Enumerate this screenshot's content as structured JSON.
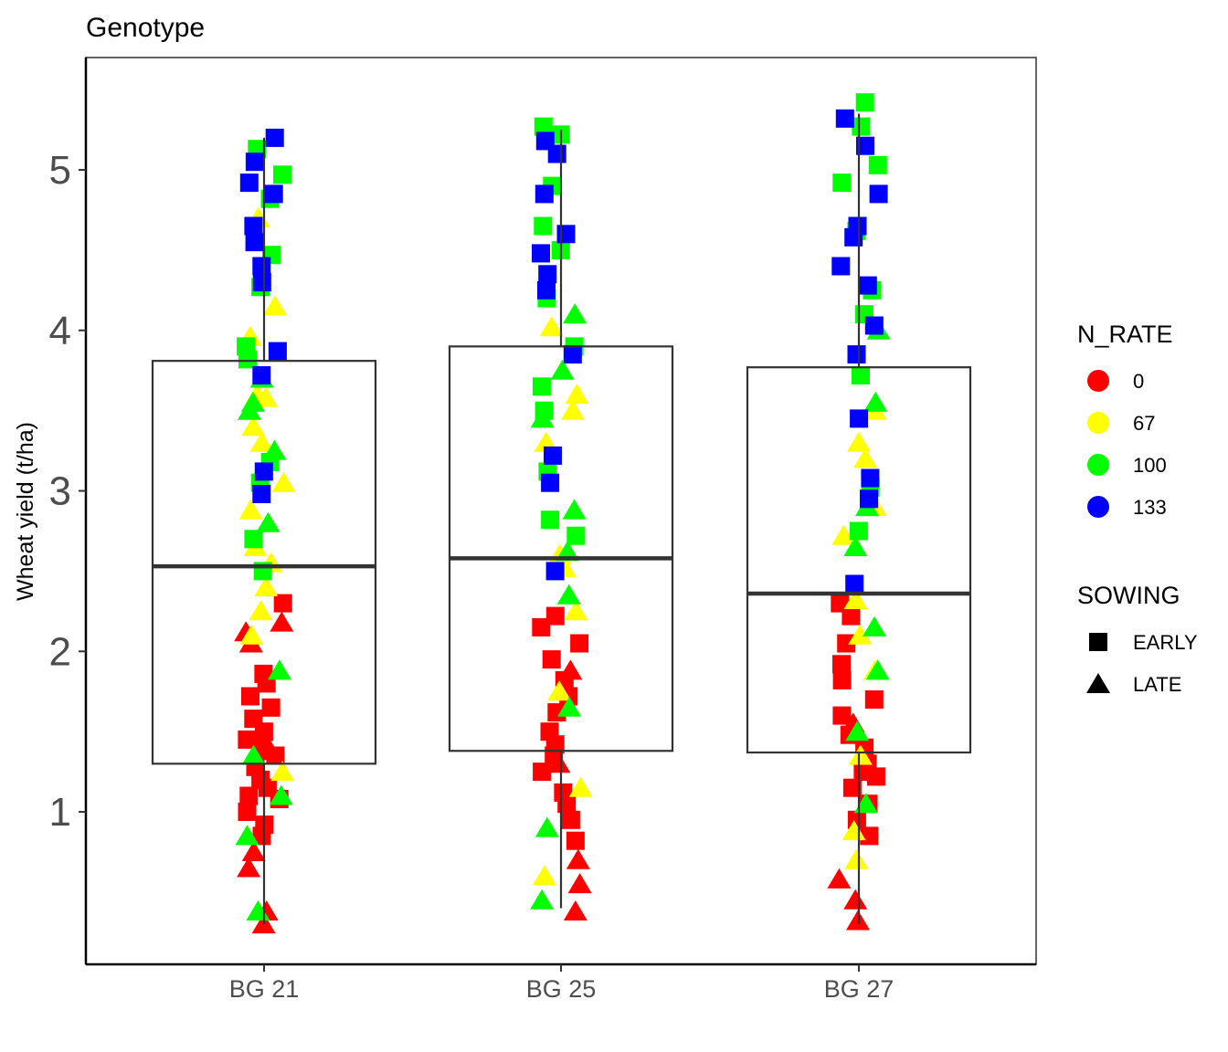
{
  "chart_data": {
    "type": "box-jitter",
    "title": "Genotype",
    "xlabel": "",
    "ylabel": "Wheat yield (t/ha)",
    "ylim": [
      0.05,
      5.7
    ],
    "y_ticks": [
      "1",
      "2",
      "3",
      "4",
      "5"
    ],
    "categories": [
      "BG 21",
      "BG 25",
      "BG 27"
    ],
    "boxes": [
      {
        "category": "BG 21",
        "whisker_low": 0.3,
        "q1": 1.3,
        "median": 2.53,
        "q3": 3.81,
        "whisker_high": 5.2
      },
      {
        "category": "BG 25",
        "whisker_low": 0.4,
        "q1": 1.38,
        "median": 2.58,
        "q3": 3.9,
        "whisker_high": 5.25
      },
      {
        "category": "BG 27",
        "whisker_low": 0.3,
        "q1": 1.37,
        "median": 2.36,
        "q3": 3.77,
        "whisker_high": 5.35
      }
    ],
    "legend_color": {
      "title": "N_RATE",
      "entries": [
        {
          "label": "0",
          "color": "#ff0000"
        },
        {
          "label": "67",
          "color": "#ffff00"
        },
        {
          "label": "100",
          "color": "#00ff00"
        },
        {
          "label": "133",
          "color": "#0000ff"
        }
      ]
    },
    "legend_shape": {
      "title": "SOWING",
      "entries": [
        {
          "label": "EARLY",
          "shape": "square"
        },
        {
          "label": "LATE",
          "shape": "triangle"
        }
      ]
    },
    "legend_position": "right",
    "grid": false,
    "points": [
      {
        "g": 0,
        "n": 0,
        "s": 1,
        "y": 0.3
      },
      {
        "g": 0,
        "n": 0,
        "s": 1,
        "y": 0.38
      },
      {
        "g": 0,
        "n": 0,
        "s": 1,
        "y": 0.65
      },
      {
        "g": 0,
        "n": 0,
        "s": 1,
        "y": 0.75
      },
      {
        "g": 0,
        "n": 0,
        "s": 0,
        "y": 0.85
      },
      {
        "g": 0,
        "n": 0,
        "s": 0,
        "y": 0.92
      },
      {
        "g": 0,
        "n": 0,
        "s": 0,
        "y": 1.0
      },
      {
        "g": 0,
        "n": 0,
        "s": 0,
        "y": 1.08
      },
      {
        "g": 0,
        "n": 0,
        "s": 0,
        "y": 1.15
      },
      {
        "g": 0,
        "n": 0,
        "s": 0,
        "y": 1.2
      },
      {
        "g": 0,
        "n": 0,
        "s": 0,
        "y": 1.28
      },
      {
        "g": 0,
        "n": 0,
        "s": 0,
        "y": 1.35
      },
      {
        "g": 0,
        "n": 0,
        "s": 1,
        "y": 1.38
      },
      {
        "g": 0,
        "n": 0,
        "s": 0,
        "y": 1.45
      },
      {
        "g": 0,
        "n": 0,
        "s": 0,
        "y": 1.5
      },
      {
        "g": 0,
        "n": 0,
        "s": 0,
        "y": 1.58
      },
      {
        "g": 0,
        "n": 0,
        "s": 0,
        "y": 1.65
      },
      {
        "g": 0,
        "n": 0,
        "s": 0,
        "y": 1.72
      },
      {
        "g": 0,
        "n": 0,
        "s": 0,
        "y": 1.8
      },
      {
        "g": 0,
        "n": 0,
        "s": 0,
        "y": 1.86
      },
      {
        "g": 0,
        "n": 0,
        "s": 1,
        "y": 2.05
      },
      {
        "g": 0,
        "n": 0,
        "s": 1,
        "y": 2.12
      },
      {
        "g": 0,
        "n": 0,
        "s": 1,
        "y": 2.18
      },
      {
        "g": 0,
        "n": 0,
        "s": 0,
        "y": 2.3
      },
      {
        "g": 0,
        "n": 0,
        "s": 0,
        "y": 1.1
      },
      {
        "g": 0,
        "n": 0,
        "s": 0,
        "y": 1.4
      },
      {
        "g": 0,
        "n": 1,
        "s": 1,
        "y": 1.25
      },
      {
        "g": 0,
        "n": 1,
        "s": 1,
        "y": 2.1
      },
      {
        "g": 0,
        "n": 1,
        "s": 1,
        "y": 2.25
      },
      {
        "g": 0,
        "n": 1,
        "s": 1,
        "y": 2.4
      },
      {
        "g": 0,
        "n": 1,
        "s": 1,
        "y": 2.55
      },
      {
        "g": 0,
        "n": 1,
        "s": 1,
        "y": 2.65
      },
      {
        "g": 0,
        "n": 1,
        "s": 1,
        "y": 2.88
      },
      {
        "g": 0,
        "n": 1,
        "s": 1,
        "y": 3.05
      },
      {
        "g": 0,
        "n": 1,
        "s": 1,
        "y": 3.3
      },
      {
        "g": 0,
        "n": 1,
        "s": 1,
        "y": 3.4
      },
      {
        "g": 0,
        "n": 1,
        "s": 1,
        "y": 3.58
      },
      {
        "g": 0,
        "n": 1,
        "s": 1,
        "y": 3.6
      },
      {
        "g": 0,
        "n": 1,
        "s": 1,
        "y": 3.96
      },
      {
        "g": 0,
        "n": 1,
        "s": 1,
        "y": 4.15
      },
      {
        "g": 0,
        "n": 1,
        "s": 1,
        "y": 4.7
      },
      {
        "g": 0,
        "n": 2,
        "s": 1,
        "y": 0.38
      },
      {
        "g": 0,
        "n": 2,
        "s": 1,
        "y": 0.85
      },
      {
        "g": 0,
        "n": 2,
        "s": 1,
        "y": 1.1
      },
      {
        "g": 0,
        "n": 2,
        "s": 1,
        "y": 1.35
      },
      {
        "g": 0,
        "n": 2,
        "s": 1,
        "y": 1.88
      },
      {
        "g": 0,
        "n": 2,
        "s": 0,
        "y": 2.5
      },
      {
        "g": 0,
        "n": 2,
        "s": 0,
        "y": 2.7
      },
      {
        "g": 0,
        "n": 2,
        "s": 1,
        "y": 2.8
      },
      {
        "g": 0,
        "n": 2,
        "s": 0,
        "y": 3.05
      },
      {
        "g": 0,
        "n": 2,
        "s": 1,
        "y": 3.25
      },
      {
        "g": 0,
        "n": 2,
        "s": 0,
        "y": 3.18
      },
      {
        "g": 0,
        "n": 2,
        "s": 1,
        "y": 3.5
      },
      {
        "g": 0,
        "n": 2,
        "s": 1,
        "y": 3.55
      },
      {
        "g": 0,
        "n": 2,
        "s": 1,
        "y": 3.7
      },
      {
        "g": 0,
        "n": 2,
        "s": 0,
        "y": 3.82
      },
      {
        "g": 0,
        "n": 2,
        "s": 0,
        "y": 3.9
      },
      {
        "g": 0,
        "n": 2,
        "s": 0,
        "y": 4.27
      },
      {
        "g": 0,
        "n": 2,
        "s": 0,
        "y": 4.47
      },
      {
        "g": 0,
        "n": 2,
        "s": 0,
        "y": 4.82
      },
      {
        "g": 0,
        "n": 2,
        "s": 0,
        "y": 4.97
      },
      {
        "g": 0,
        "n": 2,
        "s": 0,
        "y": 5.13
      },
      {
        "g": 0,
        "n": 3,
        "s": 0,
        "y": 2.98
      },
      {
        "g": 0,
        "n": 3,
        "s": 0,
        "y": 3.12
      },
      {
        "g": 0,
        "n": 3,
        "s": 0,
        "y": 3.72
      },
      {
        "g": 0,
        "n": 3,
        "s": 0,
        "y": 3.87
      },
      {
        "g": 0,
        "n": 3,
        "s": 0,
        "y": 4.3
      },
      {
        "g": 0,
        "n": 3,
        "s": 0,
        "y": 4.4
      },
      {
        "g": 0,
        "n": 3,
        "s": 0,
        "y": 4.55
      },
      {
        "g": 0,
        "n": 3,
        "s": 0,
        "y": 4.65
      },
      {
        "g": 0,
        "n": 3,
        "s": 0,
        "y": 4.85
      },
      {
        "g": 0,
        "n": 3,
        "s": 0,
        "y": 4.92
      },
      {
        "g": 0,
        "n": 3,
        "s": 0,
        "y": 5.05
      },
      {
        "g": 0,
        "n": 3,
        "s": 0,
        "y": 5.2
      },
      {
        "g": 1,
        "n": 0,
        "s": 1,
        "y": 0.38
      },
      {
        "g": 1,
        "n": 0,
        "s": 1,
        "y": 0.55
      },
      {
        "g": 1,
        "n": 0,
        "s": 1,
        "y": 0.7
      },
      {
        "g": 1,
        "n": 0,
        "s": 0,
        "y": 0.82
      },
      {
        "g": 1,
        "n": 0,
        "s": 0,
        "y": 0.95
      },
      {
        "g": 1,
        "n": 0,
        "s": 0,
        "y": 1.05
      },
      {
        "g": 1,
        "n": 0,
        "s": 0,
        "y": 1.12
      },
      {
        "g": 1,
        "n": 0,
        "s": 0,
        "y": 1.25
      },
      {
        "g": 1,
        "n": 0,
        "s": 0,
        "y": 1.35
      },
      {
        "g": 1,
        "n": 0,
        "s": 0,
        "y": 1.42
      },
      {
        "g": 1,
        "n": 0,
        "s": 0,
        "y": 1.5
      },
      {
        "g": 1,
        "n": 0,
        "s": 0,
        "y": 1.62
      },
      {
        "g": 1,
        "n": 0,
        "s": 0,
        "y": 1.72
      },
      {
        "g": 1,
        "n": 0,
        "s": 1,
        "y": 1.88
      },
      {
        "g": 1,
        "n": 0,
        "s": 0,
        "y": 1.95
      },
      {
        "g": 1,
        "n": 0,
        "s": 0,
        "y": 2.05
      },
      {
        "g": 1,
        "n": 0,
        "s": 0,
        "y": 2.15
      },
      {
        "g": 1,
        "n": 0,
        "s": 0,
        "y": 2.22
      },
      {
        "g": 1,
        "n": 0,
        "s": 0,
        "y": 1.82
      },
      {
        "g": 1,
        "n": 0,
        "s": 1,
        "y": 1.3
      },
      {
        "g": 1,
        "n": 1,
        "s": 1,
        "y": 0.6
      },
      {
        "g": 1,
        "n": 1,
        "s": 1,
        "y": 1.15
      },
      {
        "g": 1,
        "n": 1,
        "s": 1,
        "y": 1.75
      },
      {
        "g": 1,
        "n": 1,
        "s": 1,
        "y": 2.25
      },
      {
        "g": 1,
        "n": 1,
        "s": 1,
        "y": 2.52
      },
      {
        "g": 1,
        "n": 1,
        "s": 1,
        "y": 2.6
      },
      {
        "g": 1,
        "n": 1,
        "s": 1,
        "y": 3.3
      },
      {
        "g": 1,
        "n": 1,
        "s": 1,
        "y": 3.5
      },
      {
        "g": 1,
        "n": 1,
        "s": 1,
        "y": 3.6
      },
      {
        "g": 1,
        "n": 1,
        "s": 1,
        "y": 4.02
      },
      {
        "g": 1,
        "n": 2,
        "s": 1,
        "y": 0.45
      },
      {
        "g": 1,
        "n": 2,
        "s": 1,
        "y": 0.9
      },
      {
        "g": 1,
        "n": 2,
        "s": 1,
        "y": 1.65
      },
      {
        "g": 1,
        "n": 2,
        "s": 1,
        "y": 2.35
      },
      {
        "g": 1,
        "n": 2,
        "s": 1,
        "y": 2.62
      },
      {
        "g": 1,
        "n": 2,
        "s": 0,
        "y": 2.72
      },
      {
        "g": 1,
        "n": 2,
        "s": 0,
        "y": 2.82
      },
      {
        "g": 1,
        "n": 2,
        "s": 1,
        "y": 2.88
      },
      {
        "g": 1,
        "n": 2,
        "s": 0,
        "y": 3.12
      },
      {
        "g": 1,
        "n": 2,
        "s": 1,
        "y": 3.45
      },
      {
        "g": 1,
        "n": 2,
        "s": 0,
        "y": 3.5
      },
      {
        "g": 1,
        "n": 2,
        "s": 0,
        "y": 3.65
      },
      {
        "g": 1,
        "n": 2,
        "s": 1,
        "y": 3.75
      },
      {
        "g": 1,
        "n": 2,
        "s": 0,
        "y": 3.9
      },
      {
        "g": 1,
        "n": 2,
        "s": 1,
        "y": 4.1
      },
      {
        "g": 1,
        "n": 2,
        "s": 0,
        "y": 4.2
      },
      {
        "g": 1,
        "n": 2,
        "s": 0,
        "y": 4.5
      },
      {
        "g": 1,
        "n": 2,
        "s": 0,
        "y": 4.65
      },
      {
        "g": 1,
        "n": 2,
        "s": 0,
        "y": 4.9
      },
      {
        "g": 1,
        "n": 2,
        "s": 0,
        "y": 5.22
      },
      {
        "g": 1,
        "n": 2,
        "s": 0,
        "y": 5.27
      },
      {
        "g": 1,
        "n": 3,
        "s": 0,
        "y": 2.5
      },
      {
        "g": 1,
        "n": 3,
        "s": 0,
        "y": 3.05
      },
      {
        "g": 1,
        "n": 3,
        "s": 0,
        "y": 3.22
      },
      {
        "g": 1,
        "n": 3,
        "s": 0,
        "y": 3.85
      },
      {
        "g": 1,
        "n": 3,
        "s": 0,
        "y": 4.25
      },
      {
        "g": 1,
        "n": 3,
        "s": 0,
        "y": 4.35
      },
      {
        "g": 1,
        "n": 3,
        "s": 0,
        "y": 4.48
      },
      {
        "g": 1,
        "n": 3,
        "s": 0,
        "y": 4.6
      },
      {
        "g": 1,
        "n": 3,
        "s": 0,
        "y": 4.85
      },
      {
        "g": 1,
        "n": 3,
        "s": 0,
        "y": 5.1
      },
      {
        "g": 1,
        "n": 3,
        "s": 0,
        "y": 5.18
      },
      {
        "g": 2,
        "n": 0,
        "s": 1,
        "y": 0.32
      },
      {
        "g": 2,
        "n": 0,
        "s": 1,
        "y": 0.45
      },
      {
        "g": 2,
        "n": 0,
        "s": 1,
        "y": 0.58
      },
      {
        "g": 2,
        "n": 0,
        "s": 0,
        "y": 0.85
      },
      {
        "g": 2,
        "n": 0,
        "s": 0,
        "y": 0.95
      },
      {
        "g": 2,
        "n": 0,
        "s": 0,
        "y": 1.05
      },
      {
        "g": 2,
        "n": 0,
        "s": 0,
        "y": 1.15
      },
      {
        "g": 2,
        "n": 0,
        "s": 0,
        "y": 1.22
      },
      {
        "g": 2,
        "n": 0,
        "s": 0,
        "y": 1.3
      },
      {
        "g": 2,
        "n": 0,
        "s": 0,
        "y": 1.4
      },
      {
        "g": 2,
        "n": 0,
        "s": 0,
        "y": 1.48
      },
      {
        "g": 2,
        "n": 0,
        "s": 1,
        "y": 1.55
      },
      {
        "g": 2,
        "n": 0,
        "s": 0,
        "y": 1.6
      },
      {
        "g": 2,
        "n": 0,
        "s": 0,
        "y": 1.7
      },
      {
        "g": 2,
        "n": 0,
        "s": 0,
        "y": 1.82
      },
      {
        "g": 2,
        "n": 0,
        "s": 0,
        "y": 1.92
      },
      {
        "g": 2,
        "n": 0,
        "s": 0,
        "y": 2.05
      },
      {
        "g": 2,
        "n": 0,
        "s": 0,
        "y": 2.22
      },
      {
        "g": 2,
        "n": 0,
        "s": 0,
        "y": 2.3
      },
      {
        "g": 2,
        "n": 0,
        "s": 0,
        "y": 1.25
      },
      {
        "g": 2,
        "n": 1,
        "s": 1,
        "y": 0.7
      },
      {
        "g": 2,
        "n": 1,
        "s": 1,
        "y": 0.88
      },
      {
        "g": 2,
        "n": 1,
        "s": 1,
        "y": 1.35
      },
      {
        "g": 2,
        "n": 1,
        "s": 1,
        "y": 1.88
      },
      {
        "g": 2,
        "n": 1,
        "s": 1,
        "y": 2.1
      },
      {
        "g": 2,
        "n": 1,
        "s": 1,
        "y": 2.32
      },
      {
        "g": 2,
        "n": 1,
        "s": 1,
        "y": 2.72
      },
      {
        "g": 2,
        "n": 1,
        "s": 1,
        "y": 2.9
      },
      {
        "g": 2,
        "n": 1,
        "s": 1,
        "y": 3.2
      },
      {
        "g": 2,
        "n": 1,
        "s": 1,
        "y": 3.3
      },
      {
        "g": 2,
        "n": 1,
        "s": 1,
        "y": 3.5
      },
      {
        "g": 2,
        "n": 2,
        "s": 1,
        "y": 1.05
      },
      {
        "g": 2,
        "n": 2,
        "s": 1,
        "y": 1.5
      },
      {
        "g": 2,
        "n": 2,
        "s": 1,
        "y": 1.88
      },
      {
        "g": 2,
        "n": 2,
        "s": 1,
        "y": 2.15
      },
      {
        "g": 2,
        "n": 2,
        "s": 1,
        "y": 2.65
      },
      {
        "g": 2,
        "n": 2,
        "s": 0,
        "y": 2.75
      },
      {
        "g": 2,
        "n": 2,
        "s": 1,
        "y": 2.9
      },
      {
        "g": 2,
        "n": 2,
        "s": 0,
        "y": 3.02
      },
      {
        "g": 2,
        "n": 2,
        "s": 1,
        "y": 3.55
      },
      {
        "g": 2,
        "n": 2,
        "s": 0,
        "y": 3.72
      },
      {
        "g": 2,
        "n": 2,
        "s": 1,
        "y": 4.0
      },
      {
        "g": 2,
        "n": 2,
        "s": 0,
        "y": 4.1
      },
      {
        "g": 2,
        "n": 2,
        "s": 0,
        "y": 4.25
      },
      {
        "g": 2,
        "n": 2,
        "s": 0,
        "y": 4.62
      },
      {
        "g": 2,
        "n": 2,
        "s": 0,
        "y": 4.92
      },
      {
        "g": 2,
        "n": 2,
        "s": 0,
        "y": 5.03
      },
      {
        "g": 2,
        "n": 2,
        "s": 0,
        "y": 5.27
      },
      {
        "g": 2,
        "n": 2,
        "s": 0,
        "y": 5.42
      },
      {
        "g": 2,
        "n": 3,
        "s": 0,
        "y": 2.42
      },
      {
        "g": 2,
        "n": 3,
        "s": 0,
        "y": 2.95
      },
      {
        "g": 2,
        "n": 3,
        "s": 0,
        "y": 3.08
      },
      {
        "g": 2,
        "n": 3,
        "s": 0,
        "y": 3.45
      },
      {
        "g": 2,
        "n": 3,
        "s": 0,
        "y": 3.85
      },
      {
        "g": 2,
        "n": 3,
        "s": 0,
        "y": 4.03
      },
      {
        "g": 2,
        "n": 3,
        "s": 0,
        "y": 4.28
      },
      {
        "g": 2,
        "n": 3,
        "s": 0,
        "y": 4.4
      },
      {
        "g": 2,
        "n": 3,
        "s": 0,
        "y": 4.58
      },
      {
        "g": 2,
        "n": 3,
        "s": 0,
        "y": 4.65
      },
      {
        "g": 2,
        "n": 3,
        "s": 0,
        "y": 4.85
      },
      {
        "g": 2,
        "n": 3,
        "s": 0,
        "y": 5.15
      },
      {
        "g": 2,
        "n": 3,
        "s": 0,
        "y": 5.32
      }
    ]
  }
}
